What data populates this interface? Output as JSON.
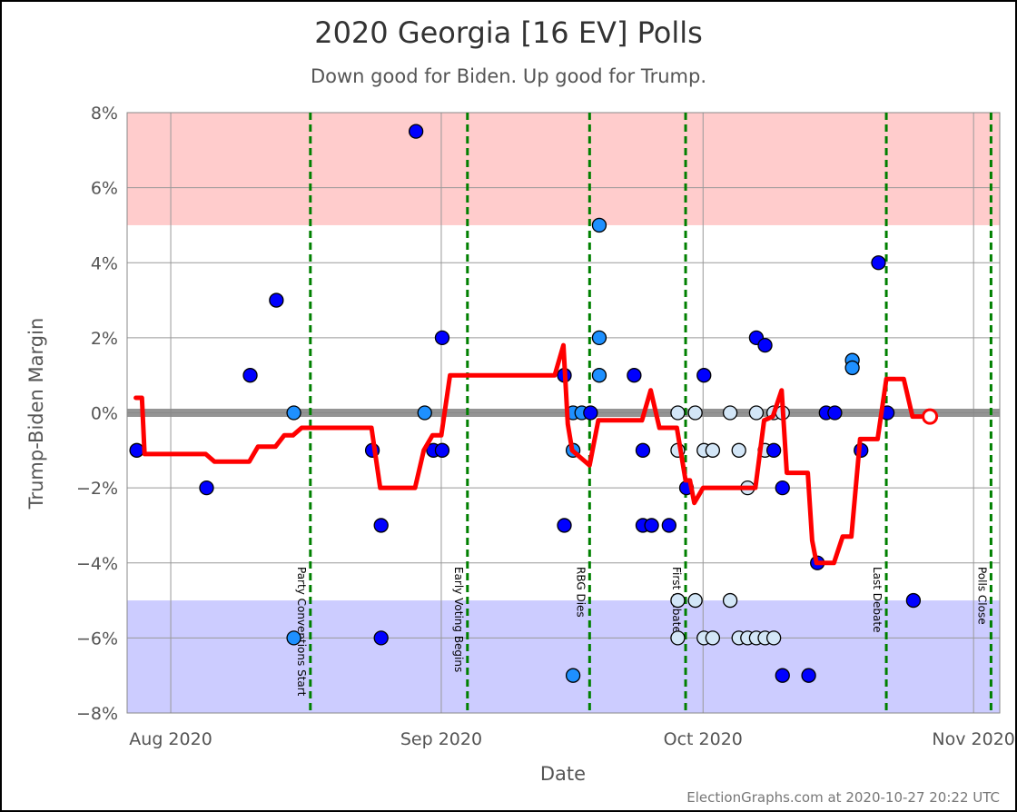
{
  "colors": {
    "trump_zone": "#ffcccc",
    "biden_zone": "#ccccff",
    "grid": "#999999",
    "zero_line": "#888888",
    "event_line": "#008000",
    "average_line": "#ff0000",
    "poll_dark": "#0000ff",
    "poll_medium": "#1e90ff",
    "poll_light": "#d3e6f7"
  },
  "chart_data": {
    "type": "scatter",
    "title": "2020 Georgia [16 EV] Polls",
    "subtitle": "Down good for Biden. Up good for Trump.",
    "xlabel": "Date",
    "ylabel": "Trump-Biden Margin",
    "credit": "ElectionGraphs.com at 2020-10-27 20:22 UTC",
    "xlim": [
      "2020-07-27",
      "2020-11-04"
    ],
    "ylim": [
      -8,
      8
    ],
    "x_ticks": [
      {
        "date": "2020-08-01",
        "label": "Aug 2020"
      },
      {
        "date": "2020-09-01",
        "label": "Sep 2020"
      },
      {
        "date": "2020-10-01",
        "label": "Oct 2020"
      },
      {
        "date": "2020-11-01",
        "label": "Nov 2020"
      }
    ],
    "y_ticks": [
      {
        "value": 8,
        "label": "8%"
      },
      {
        "value": 6,
        "label": "6%"
      },
      {
        "value": 4,
        "label": "4%"
      },
      {
        "value": 2,
        "label": "2%"
      },
      {
        "value": 0,
        "label": "0%"
      },
      {
        "value": -2,
        "label": "−2%"
      },
      {
        "value": -4,
        "label": "−4%"
      },
      {
        "value": -6,
        "label": "−6%"
      },
      {
        "value": -8,
        "label": "−8%"
      }
    ],
    "zones": [
      {
        "from": 5,
        "to": 8,
        "color": "trump_zone"
      },
      {
        "from": -8,
        "to": -5,
        "color": "biden_zone"
      }
    ],
    "grid": true,
    "events": [
      {
        "date": "2020-08-17",
        "label": "Party Conventions Start"
      },
      {
        "date": "2020-09-04",
        "label": "Early Voting Begins"
      },
      {
        "date": "2020-09-18",
        "label": "RBG Dies"
      },
      {
        "date": "2020-09-29",
        "label": "First Debate"
      },
      {
        "date": "2020-10-22",
        "label": "Last Debate"
      },
      {
        "date": "2020-11-03",
        "label": "Polls Close"
      }
    ],
    "average": {
      "dates": [
        "2020-07-28",
        "2020-07-28.7",
        "2020-07-29",
        "2020-08-05",
        "2020-08-06",
        "2020-08-10",
        "2020-08-11",
        "2020-08-13",
        "2020-08-14",
        "2020-08-15",
        "2020-08-16",
        "2020-08-17",
        "2020-08-24",
        "2020-08-25",
        "2020-08-29",
        "2020-08-30",
        "2020-08-31",
        "2020-09-01",
        "2020-09-02",
        "2020-09-03",
        "2020-09-14",
        "2020-09-15",
        "2020-09-15.5",
        "2020-09-16",
        "2020-09-17",
        "2020-09-18",
        "2020-09-19",
        "2020-09-24",
        "2020-09-25",
        "2020-09-26",
        "2020-09-28",
        "2020-09-29",
        "2020-09-29.5",
        "2020-09-30",
        "2020-10-01",
        "2020-10-07",
        "2020-10-08",
        "2020-10-09",
        "2020-10-10",
        "2020-10-10.6",
        "2020-10-11",
        "2020-10-13",
        "2020-10-13.5",
        "2020-10-14",
        "2020-10-16",
        "2020-10-17",
        "2020-10-18",
        "2020-10-19",
        "2020-10-21",
        "2020-10-22",
        "2020-10-24",
        "2020-10-25",
        "2020-10-26"
      ],
      "values": [
        0.4,
        0.4,
        -1.1,
        -1.1,
        -1.3,
        -1.3,
        -0.9,
        -0.9,
        -0.6,
        -0.6,
        -0.4,
        -0.4,
        -0.4,
        -2.0,
        -2.0,
        -1.0,
        -0.6,
        -0.6,
        1.0,
        1.0,
        1.0,
        1.8,
        -0.3,
        -1.0,
        -1.2,
        -1.4,
        -0.2,
        -0.2,
        0.6,
        -0.4,
        -0.4,
        -1.8,
        -1.8,
        -2.4,
        -2.0,
        -2.0,
        -0.2,
        -0.1,
        0.6,
        -1.6,
        -1.6,
        -1.6,
        -3.4,
        -4.0,
        -4.0,
        -3.3,
        -3.3,
        -0.7,
        -0.7,
        0.9,
        0.9,
        -0.1,
        -0.1
      ]
    },
    "current_average": {
      "date": "2020-10-27",
      "value": -0.1
    },
    "polls": [
      {
        "date": "2020-07-28",
        "margin": -1,
        "shade": "dark"
      },
      {
        "date": "2020-08-05",
        "margin": -2,
        "shade": "dark"
      },
      {
        "date": "2020-08-10",
        "margin": 1,
        "shade": "dark"
      },
      {
        "date": "2020-08-13",
        "margin": 3,
        "shade": "dark"
      },
      {
        "date": "2020-08-15",
        "margin": 0,
        "shade": "medium"
      },
      {
        "date": "2020-08-15",
        "margin": -6,
        "shade": "medium"
      },
      {
        "date": "2020-08-24",
        "margin": -1,
        "shade": "dark"
      },
      {
        "date": "2020-08-25",
        "margin": -6,
        "shade": "dark"
      },
      {
        "date": "2020-08-25",
        "margin": -3,
        "shade": "dark"
      },
      {
        "date": "2020-08-29",
        "margin": 7.5,
        "shade": "dark"
      },
      {
        "date": "2020-08-30",
        "margin": 0,
        "shade": "medium"
      },
      {
        "date": "2020-08-31",
        "margin": -1,
        "shade": "dark"
      },
      {
        "date": "2020-09-01",
        "margin": -1,
        "shade": "dark"
      },
      {
        "date": "2020-09-01",
        "margin": 2,
        "shade": "dark"
      },
      {
        "date": "2020-09-15",
        "margin": 1,
        "shade": "dark"
      },
      {
        "date": "2020-09-15",
        "margin": -3,
        "shade": "dark"
      },
      {
        "date": "2020-09-16",
        "margin": 0,
        "shade": "medium"
      },
      {
        "date": "2020-09-16",
        "margin": -1,
        "shade": "medium"
      },
      {
        "date": "2020-09-16",
        "margin": -7,
        "shade": "medium"
      },
      {
        "date": "2020-09-17",
        "margin": 0,
        "shade": "medium"
      },
      {
        "date": "2020-09-18",
        "margin": 0,
        "shade": "dark"
      },
      {
        "date": "2020-09-19",
        "margin": 5,
        "shade": "medium"
      },
      {
        "date": "2020-09-19",
        "margin": 2,
        "shade": "medium"
      },
      {
        "date": "2020-09-19",
        "margin": 1,
        "shade": "medium"
      },
      {
        "date": "2020-09-23",
        "margin": 1,
        "shade": "dark"
      },
      {
        "date": "2020-09-24",
        "margin": -1,
        "shade": "dark"
      },
      {
        "date": "2020-09-24",
        "margin": -3,
        "shade": "dark"
      },
      {
        "date": "2020-09-25",
        "margin": -3,
        "shade": "dark"
      },
      {
        "date": "2020-09-27",
        "margin": -3,
        "shade": "dark"
      },
      {
        "date": "2020-09-28",
        "margin": 0,
        "shade": "light"
      },
      {
        "date": "2020-09-28",
        "margin": -1,
        "shade": "light"
      },
      {
        "date": "2020-09-28",
        "margin": -5,
        "shade": "light"
      },
      {
        "date": "2020-09-28",
        "margin": -6,
        "shade": "light"
      },
      {
        "date": "2020-09-29",
        "margin": -2,
        "shade": "dark"
      },
      {
        "date": "2020-09-30",
        "margin": 0,
        "shade": "light"
      },
      {
        "date": "2020-09-30",
        "margin": -5,
        "shade": "light"
      },
      {
        "date": "2020-10-01",
        "margin": 1,
        "shade": "dark"
      },
      {
        "date": "2020-10-01",
        "margin": -1,
        "shade": "light"
      },
      {
        "date": "2020-10-01",
        "margin": -6,
        "shade": "light"
      },
      {
        "date": "2020-10-02",
        "margin": -1,
        "shade": "light"
      },
      {
        "date": "2020-10-02",
        "margin": -6,
        "shade": "light"
      },
      {
        "date": "2020-10-04",
        "margin": 0,
        "shade": "light"
      },
      {
        "date": "2020-10-04",
        "margin": -5,
        "shade": "light"
      },
      {
        "date": "2020-10-05",
        "margin": -1,
        "shade": "light"
      },
      {
        "date": "2020-10-05",
        "margin": -6,
        "shade": "light"
      },
      {
        "date": "2020-10-06",
        "margin": -2,
        "shade": "light"
      },
      {
        "date": "2020-10-06",
        "margin": -6,
        "shade": "light"
      },
      {
        "date": "2020-10-07",
        "margin": 2,
        "shade": "dark"
      },
      {
        "date": "2020-10-07",
        "margin": 0,
        "shade": "light"
      },
      {
        "date": "2020-10-07",
        "margin": -6,
        "shade": "light"
      },
      {
        "date": "2020-10-08",
        "margin": 1.8,
        "shade": "dark"
      },
      {
        "date": "2020-10-08",
        "margin": -1,
        "shade": "light"
      },
      {
        "date": "2020-10-08",
        "margin": -6,
        "shade": "light"
      },
      {
        "date": "2020-10-09",
        "margin": 0,
        "shade": "light"
      },
      {
        "date": "2020-10-09",
        "margin": -1,
        "shade": "dark"
      },
      {
        "date": "2020-10-09",
        "margin": -6,
        "shade": "light"
      },
      {
        "date": "2020-10-10",
        "margin": 0,
        "shade": "light"
      },
      {
        "date": "2020-10-10",
        "margin": -2,
        "shade": "dark"
      },
      {
        "date": "2020-10-10",
        "margin": -7,
        "shade": "dark"
      },
      {
        "date": "2020-10-13",
        "margin": -7,
        "shade": "dark"
      },
      {
        "date": "2020-10-14",
        "margin": -4,
        "shade": "dark"
      },
      {
        "date": "2020-10-15",
        "margin": 0,
        "shade": "dark"
      },
      {
        "date": "2020-10-16",
        "margin": 0,
        "shade": "dark"
      },
      {
        "date": "2020-10-18",
        "margin": 1.4,
        "shade": "medium"
      },
      {
        "date": "2020-10-18",
        "margin": 1.2,
        "shade": "medium"
      },
      {
        "date": "2020-10-19",
        "margin": -1,
        "shade": "dark"
      },
      {
        "date": "2020-10-21",
        "margin": 4,
        "shade": "dark"
      },
      {
        "date": "2020-10-22",
        "margin": 0,
        "shade": "dark"
      },
      {
        "date": "2020-10-25",
        "margin": -5,
        "shade": "dark"
      }
    ]
  }
}
